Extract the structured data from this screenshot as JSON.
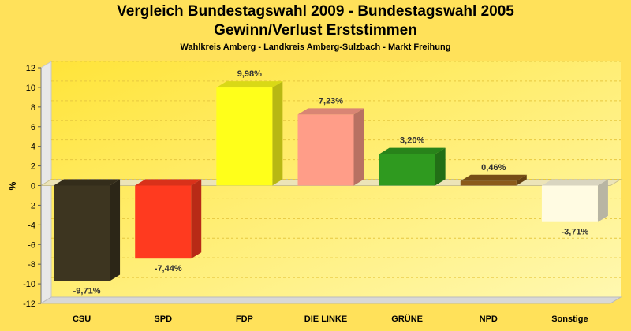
{
  "chart_data": {
    "type": "bar",
    "title": "Vergleich Bundestagswahl 2009 - Bundestagswahl 2005",
    "subtitle": "Gewinn/Verlust Erststimmen",
    "subsubtitle": "Wahlkreis Amberg - Landkreis Amberg-Sulzbach - Markt Freihung",
    "ylabel": "%",
    "xlabel": "",
    "ylim": [
      -12,
      12
    ],
    "yticks": [
      12,
      10,
      8,
      6,
      4,
      2,
      0,
      -2,
      -4,
      -6,
      -8,
      -10,
      -12
    ],
    "grid": true,
    "categories": [
      "CSU",
      "SPD",
      "FDP",
      "DIE LINKE",
      "GRÜNE",
      "NPD",
      "Sonstige"
    ],
    "values": [
      -9.71,
      -7.44,
      9.98,
      7.23,
      3.2,
      0.46,
      -3.71
    ],
    "value_labels": [
      "-9,71%",
      "-7,44%",
      "9,98%",
      "7,23%",
      "3,20%",
      "0,46%",
      "-3,71%"
    ],
    "colors": [
      "#3d3520",
      "#ff3a1f",
      "#ffff1a",
      "#ff9d88",
      "#2f9a1f",
      "#8b5a1a",
      "#fffbe2"
    ]
  }
}
